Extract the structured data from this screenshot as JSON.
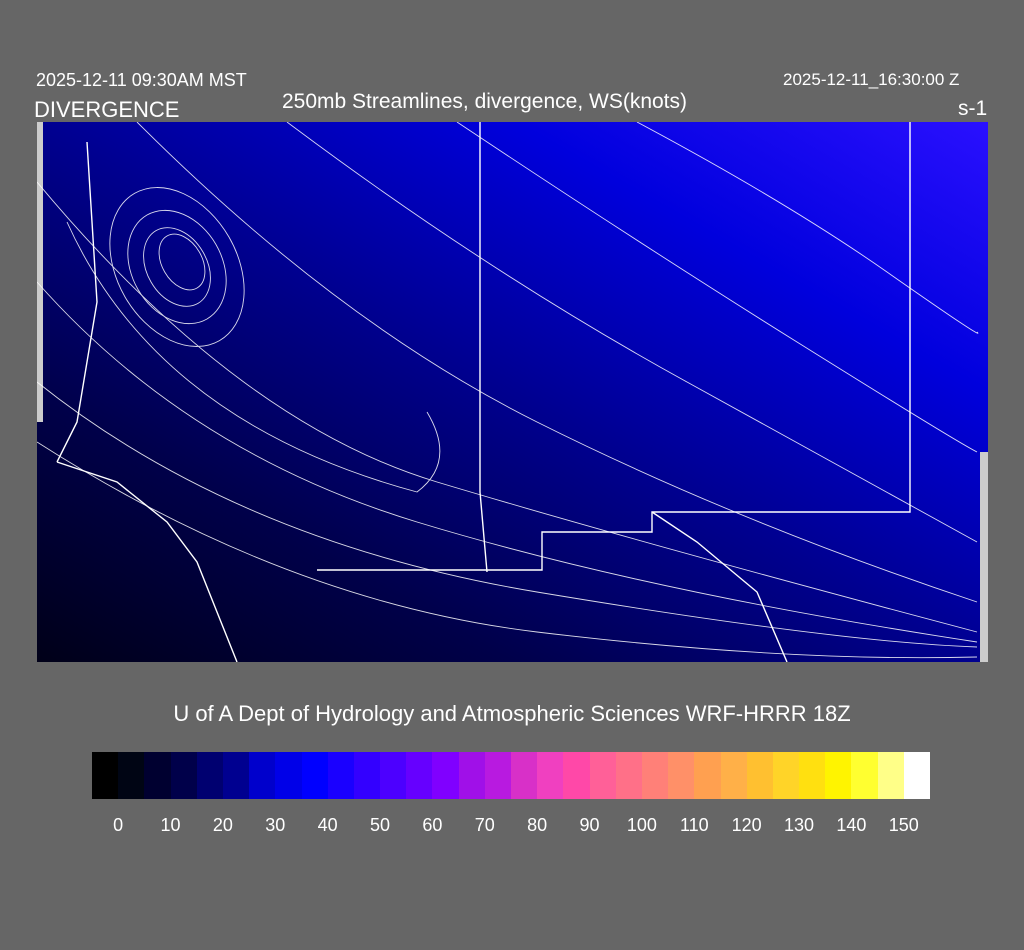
{
  "header": {
    "local_time": "2025-12-11 09:30AM MST",
    "field": "DIVERGENCE",
    "title": "250mb Streamlines, divergence, WS(knots)",
    "utc_time": "2025-12-11_16:30:00 Z",
    "units": "s-1"
  },
  "credit": "U of A Dept of Hydrology and Atmospheric Sciences WRF-HRRR 18Z",
  "colorbar": {
    "colors": [
      "#000000",
      "#000514",
      "#000030",
      "#00004a",
      "#000070",
      "#000090",
      "#0000cc",
      "#0000e8",
      "#0000ff",
      "#1a00ff",
      "#3300ff",
      "#4c00ff",
      "#6600ff",
      "#8000ff",
      "#a010e8",
      "#b81ae0",
      "#d830c8",
      "#f040c0",
      "#ff48a8",
      "#ff6098",
      "#ff7088",
      "#ff8078",
      "#ff9068",
      "#ffa050",
      "#ffb048",
      "#ffc030",
      "#ffd428",
      "#ffe010",
      "#fff400",
      "#ffff30",
      "#ffff88",
      "#ffffff"
    ],
    "ticks": [
      "0",
      "10",
      "20",
      "30",
      "40",
      "50",
      "60",
      "70",
      "80",
      "90",
      "100",
      "110",
      "120",
      "130",
      "140",
      "150"
    ]
  }
}
